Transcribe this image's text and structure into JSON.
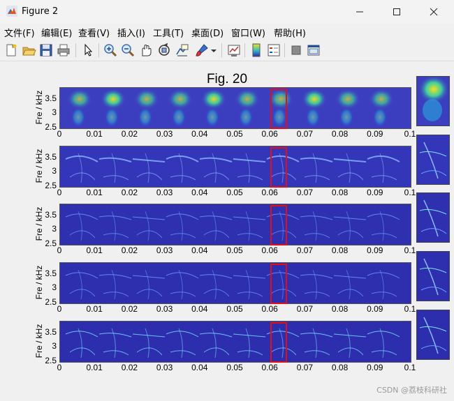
{
  "window": {
    "title": "Figure 2"
  },
  "menu": [
    "文件(F)",
    "编辑(E)",
    "查看(V)",
    "插入(I)",
    "工具(T)",
    "桌面(D)",
    "窗口(W)",
    "帮助(H)"
  ],
  "toolbar_icons": [
    "new-figure-icon",
    "open-icon",
    "save-icon",
    "print-icon",
    "pointer-icon",
    "zoom-in-icon",
    "zoom-out-icon",
    "pan-icon",
    "rotate-icon",
    "data-cursor-icon",
    "brush-icon",
    "brush-dropdown-icon",
    "link-plot-icon",
    "colorbar-icon",
    "legend-icon",
    "hide-plot-tools-icon",
    "show-plot-tools-icon"
  ],
  "figure": {
    "title": "Fig. 20",
    "ylabel": "Fre / kHz"
  },
  "axes": {
    "x_ticks": [
      "0",
      "0.01",
      "0.02",
      "0.03",
      "0.04",
      "0.05",
      "0.06",
      "0.07",
      "0.08",
      "0.09",
      "0.1"
    ],
    "y_ticks": [
      "3.5",
      "3",
      "2.5"
    ]
  },
  "chart_data": [
    {
      "type": "heatmap",
      "x_range": [
        0,
        0.1
      ],
      "y_range": [
        2.5,
        3.9
      ],
      "xlabel": "",
      "ylabel": "Fre / kHz",
      "highlight_x": [
        0.0601,
        0.0645
      ]
    },
    {
      "type": "heatmap",
      "x_range": [
        0,
        0.1
      ],
      "y_range": [
        2.5,
        3.9
      ],
      "xlabel": "",
      "ylabel": "Fre / kHz",
      "highlight_x": [
        0.0601,
        0.0645
      ]
    },
    {
      "type": "heatmap",
      "x_range": [
        0,
        0.1
      ],
      "y_range": [
        2.5,
        3.9
      ],
      "xlabel": "",
      "ylabel": "Fre / kHz",
      "highlight_x": [
        0.0601,
        0.0645
      ]
    },
    {
      "type": "heatmap",
      "x_range": [
        0,
        0.1
      ],
      "y_range": [
        2.5,
        3.9
      ],
      "xlabel": "",
      "ylabel": "Fre / kHz",
      "highlight_x": [
        0.0601,
        0.0645
      ]
    },
    {
      "type": "heatmap",
      "x_range": [
        0,
        0.1
      ],
      "y_range": [
        2.5,
        3.9
      ],
      "xlabel": "",
      "ylabel": "Fre / kHz",
      "highlight_x": [
        0.0601,
        0.0645
      ]
    }
  ],
  "watermark": "CSDN @荔枝科研社"
}
